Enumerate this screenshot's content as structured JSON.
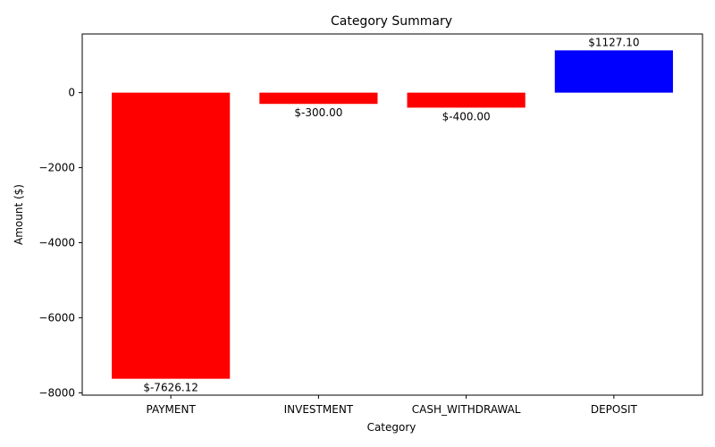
{
  "chart_data": {
    "type": "bar",
    "title": "Category Summary",
    "xlabel": "Category",
    "ylabel": "Amount ($)",
    "categories": [
      "PAYMENT",
      "INVESTMENT",
      "CASH_WITHDRAWAL",
      "DEPOSIT"
    ],
    "values": [
      -7626.12,
      -300.0,
      -400.0,
      1127.1
    ],
    "data_labels": [
      "$-7626.12",
      "$-300.00",
      "$-400.00",
      "$1127.10"
    ],
    "colors": [
      "#ff0000",
      "#ff0000",
      "#ff0000",
      "#0000ff"
    ],
    "ylim": [
      -8063,
      1564
    ],
    "yticks": [
      -8000,
      -6000,
      -4000,
      -2000,
      0
    ],
    "ytick_labels": [
      "−8000",
      "−6000",
      "−4000",
      "−2000",
      "0"
    ],
    "grid": false,
    "legend": "none"
  }
}
